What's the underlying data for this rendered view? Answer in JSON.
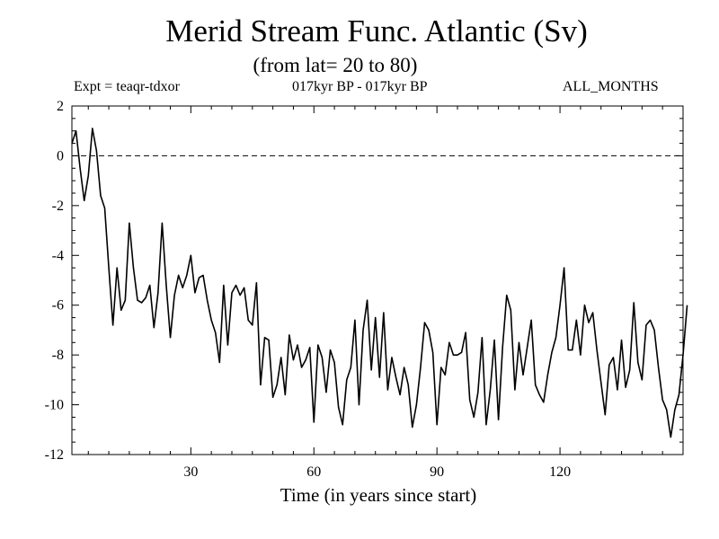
{
  "chart_data": {
    "type": "line",
    "title": "Merid Stream Func. Atlantic (Sv)",
    "subtitle": "(from lat= 20 to 80)",
    "experiment_label": "Expt = teaqr-tdxor",
    "period_label": "017kyr BP - 017kyr BP",
    "months_label": "ALL_MONTHS",
    "xlabel": "Time (in years since start)",
    "ylabel": "",
    "xlim": [
      1,
      150
    ],
    "ylim": [
      -12,
      2
    ],
    "xticks": [
      30,
      60,
      90,
      120
    ],
    "yticks": [
      2,
      0,
      -2,
      -4,
      -6,
      -8,
      -10,
      -12
    ],
    "reference_line": {
      "y": 0,
      "style": "dashed"
    },
    "series": [
      {
        "name": "Merid Stream Func.",
        "x_start": 1,
        "x_step": 1,
        "values": [
          0.5,
          1.0,
          -0.5,
          -1.8,
          -0.8,
          1.1,
          0.2,
          -1.6,
          -2.1,
          -4.5,
          -6.8,
          -4.5,
          -6.2,
          -5.8,
          -2.7,
          -4.5,
          -5.8,
          -5.9,
          -5.7,
          -5.2,
          -6.9,
          -5.5,
          -2.7,
          -5.2,
          -7.3,
          -5.6,
          -4.8,
          -5.3,
          -4.8,
          -4.0,
          -5.5,
          -4.9,
          -4.8,
          -5.8,
          -6.6,
          -7.1,
          -8.3,
          -5.2,
          -7.6,
          -5.5,
          -5.2,
          -5.6,
          -5.3,
          -6.6,
          -6.8,
          -5.1,
          -9.2,
          -7.3,
          -7.4,
          -9.7,
          -9.2,
          -8.1,
          -9.6,
          -7.2,
          -8.2,
          -7.6,
          -8.5,
          -8.2,
          -7.7,
          -10.7,
          -7.6,
          -8.1,
          -9.5,
          -7.8,
          -8.3,
          -10.1,
          -10.8,
          -9.0,
          -8.5,
          -6.6,
          -10.0,
          -7.0,
          -5.8,
          -8.6,
          -6.5,
          -8.9,
          -6.3,
          -9.4,
          -8.1,
          -8.9,
          -9.6,
          -8.5,
          -9.2,
          -10.9,
          -10.0,
          -8.5,
          -6.7,
          -7.0,
          -7.9,
          -10.8,
          -8.5,
          -8.8,
          -7.5,
          -8.0,
          -8.0,
          -7.9,
          -7.1,
          -9.8,
          -10.5,
          -9.5,
          -7.3,
          -10.8,
          -9.4,
          -7.4,
          -10.6,
          -7.7,
          -5.6,
          -6.2,
          -9.4,
          -7.5,
          -8.8,
          -7.7,
          -6.6,
          -9.2,
          -9.6,
          -9.9,
          -8.8,
          -7.9,
          -7.3,
          -6.0,
          -4.5,
          -7.8,
          -7.8,
          -6.6,
          -8.0,
          -6.0,
          -6.7,
          -6.3,
          -7.8,
          -9.1,
          -10.4,
          -8.4,
          -8.1,
          -9.4,
          -7.4,
          -9.3,
          -8.6,
          -5.9,
          -8.3,
          -9.0,
          -6.8,
          -6.6,
          -7.0,
          -8.5,
          -9.8,
          -10.2,
          -11.3,
          -10.2,
          -9.6,
          -8.0,
          -6.0
        ]
      }
    ]
  }
}
